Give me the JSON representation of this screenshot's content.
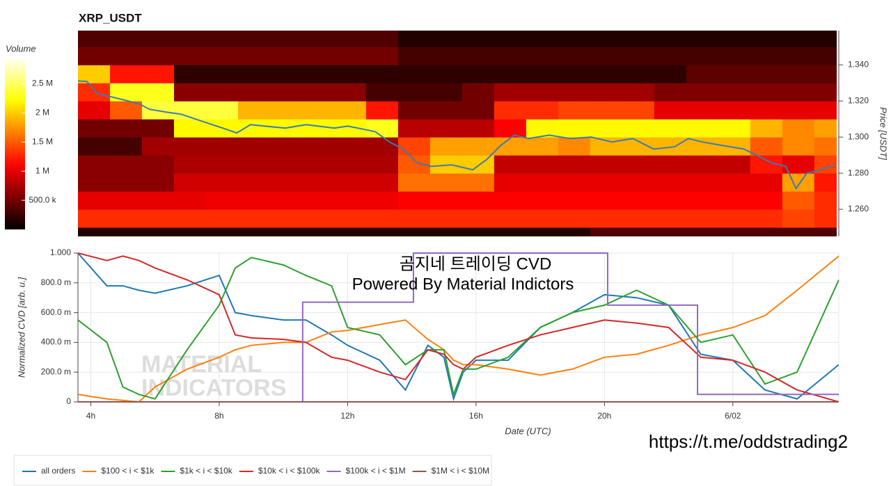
{
  "chart_data": [
    {
      "type": "heatmap",
      "title": "XRP_USDT",
      "colormap": "hot",
      "xlim": [
        3.6,
        27.3
      ],
      "ylim": [
        1.245,
        1.359
      ],
      "xbins": [
        3.6,
        4.6,
        5.6,
        6.6,
        7.6,
        8.6,
        9.6,
        10.6,
        11.6,
        12.6,
        13.6,
        14.6,
        15.6,
        16.6,
        17.6,
        18.6,
        19.6,
        20.6,
        21.6,
        22.6,
        23.6,
        24.6,
        25.6,
        26.6,
        27.3
      ],
      "ybins": [
        1.24,
        1.25,
        1.26,
        1.27,
        1.28,
        1.29,
        1.3,
        1.31,
        1.32,
        1.33,
        1.34,
        1.35,
        1.36
      ],
      "z": [
        [
          150000,
          150000,
          150000,
          150000,
          150000,
          150000,
          150000,
          150000,
          150000,
          150000,
          150000,
          150000,
          150000,
          150000,
          150000,
          150000,
          350000,
          350000,
          350000,
          350000,
          350000,
          350000,
          350000,
          350000
        ],
        [
          1300000,
          1300000,
          1300000,
          1300000,
          1300000,
          1300000,
          1300000,
          1300000,
          1300000,
          1300000,
          1300000,
          1300000,
          1300000,
          1300000,
          1300000,
          1300000,
          1300000,
          1300000,
          1300000,
          1300000,
          1300000,
          1300000,
          1400000,
          1300000
        ],
        [
          1000000,
          1000000,
          1000000,
          1000000,
          1050000,
          1050000,
          1050000,
          1050000,
          1050000,
          1050000,
          1100000,
          1100000,
          1100000,
          1100000,
          1100000,
          1100000,
          1100000,
          1100000,
          1100000,
          1100000,
          1100000,
          1100000,
          1500000,
          1300000
        ],
        [
          600000,
          600000,
          600000,
          900000,
          900000,
          900000,
          900000,
          900000,
          900000,
          900000,
          1600000,
          1600000,
          1600000,
          1000000,
          1000000,
          1000000,
          1000000,
          1000000,
          1000000,
          1000000,
          1000000,
          1000000,
          1800000,
          1200000
        ],
        [
          600000,
          600000,
          600000,
          750000,
          750000,
          750000,
          750000,
          750000,
          750000,
          750000,
          1500000,
          2000000,
          2000000,
          850000,
          850000,
          850000,
          850000,
          850000,
          850000,
          850000,
          850000,
          1200000,
          1000000,
          1400000
        ],
        [
          300000,
          300000,
          700000,
          700000,
          700000,
          700000,
          700000,
          700000,
          700000,
          700000,
          1400000,
          1800000,
          1800000,
          1800000,
          1800000,
          1700000,
          1900000,
          1900000,
          1900000,
          1900000,
          1900000,
          1500000,
          1700000,
          1600000
        ],
        [
          500000,
          500000,
          500000,
          2200000,
          2200000,
          2200000,
          2200000,
          2200000,
          2200000,
          2300000,
          800000,
          800000,
          800000,
          1100000,
          2200000,
          2200000,
          2200000,
          2200000,
          2200000,
          2200000,
          2200000,
          1900000,
          1700000,
          1800000
        ],
        [
          1000000,
          1500000,
          2400000,
          2400000,
          2400000,
          1900000,
          1900000,
          1900000,
          1900000,
          1200000,
          500000,
          500000,
          500000,
          1300000,
          1300000,
          1400000,
          1400000,
          1400000,
          1000000,
          1000000,
          1000000,
          1000000,
          1000000,
          1000000
        ],
        [
          1300000,
          2300000,
          2300000,
          600000,
          600000,
          600000,
          600000,
          600000,
          600000,
          300000,
          300000,
          300000,
          500000,
          700000,
          700000,
          700000,
          700000,
          700000,
          550000,
          550000,
          550000,
          550000,
          550000,
          550000
        ],
        [
          2000000,
          1200000,
          1200000,
          200000,
          200000,
          200000,
          200000,
          200000,
          200000,
          200000,
          200000,
          200000,
          200000,
          200000,
          200000,
          200000,
          200000,
          200000,
          200000,
          400000,
          400000,
          400000,
          400000,
          400000
        ],
        [
          500000,
          500000,
          500000,
          500000,
          500000,
          500000,
          500000,
          500000,
          500000,
          500000,
          300000,
          300000,
          300000,
          300000,
          300000,
          300000,
          300000,
          300000,
          300000,
          300000,
          300000,
          300000,
          300000,
          300000
        ],
        [
          350000,
          350000,
          350000,
          350000,
          350000,
          350000,
          350000,
          350000,
          350000,
          350000,
          150000,
          150000,
          150000,
          150000,
          150000,
          150000,
          150000,
          150000,
          150000,
          150000,
          150000,
          150000,
          150000,
          150000
        ]
      ],
      "yaxis_side": "right",
      "ylabel": "Price [USDT]",
      "yticks": [
        {
          "value": 1.26,
          "label": "1.260"
        },
        {
          "value": 1.28,
          "label": "1.280"
        },
        {
          "value": 1.3,
          "label": "1.300"
        },
        {
          "value": 1.32,
          "label": "1.320"
        },
        {
          "value": 1.34,
          "label": "1.340"
        }
      ],
      "colorbar": {
        "label": "Volume",
        "lim": [
          0,
          2960000
        ],
        "ticks": [
          {
            "value": 500000,
            "label": "500.0 k"
          },
          {
            "value": 1000000,
            "label": "1 M"
          },
          {
            "value": 1500000,
            "label": "1.5 M"
          },
          {
            "value": 2000000,
            "label": "2 M"
          },
          {
            "value": 2500000,
            "label": "2.5 M"
          }
        ]
      },
      "price_line": {
        "color": "#3a7bb5",
        "x": [
          3.6,
          3.88,
          4.21,
          4.64,
          5.08,
          5.51,
          5.84,
          6.38,
          6.82,
          7.47,
          8.12,
          8.56,
          8.99,
          9.43,
          10.08,
          10.73,
          11.6,
          12.03,
          12.89,
          13.33,
          13.76,
          14.2,
          14.63,
          15.28,
          15.93,
          16.37,
          16.8,
          17.23,
          17.67,
          18.32,
          18.97,
          19.63,
          20.28,
          20.93,
          21.58,
          22.23,
          22.67,
          23.1,
          23.75,
          24.4,
          24.84,
          25.27,
          25.71,
          26.03,
          26.36,
          26.79,
          27.23
        ],
        "values": [
          1.3311,
          1.3308,
          1.3242,
          1.3223,
          1.3204,
          1.3184,
          1.3154,
          1.3138,
          1.3127,
          1.3088,
          1.305,
          1.3023,
          1.3069,
          1.3061,
          1.305,
          1.3069,
          1.305,
          1.3061,
          1.303,
          1.2973,
          1.2934,
          1.2857,
          1.2838,
          1.2846,
          1.2819,
          1.2876,
          1.2953,
          1.3011,
          1.2992,
          1.3011,
          1.2992,
          1.3,
          1.2973,
          1.2992,
          1.2934,
          1.2946,
          1.2992,
          1.2973,
          1.2953,
          1.2934,
          1.2896,
          1.2857,
          1.2838,
          1.2715,
          1.2799,
          1.2819,
          1.2846
        ]
      }
    },
    {
      "type": "line",
      "grid": true,
      "xlim": [
        3.6,
        27.3
      ],
      "ylim": [
        0,
        1
      ],
      "xlabel": "Date (UTC)",
      "ylabel": "Normalized CVD [arb. u.]",
      "xticks": [
        {
          "value": 4,
          "label": "4h"
        },
        {
          "value": 8,
          "label": "8h"
        },
        {
          "value": 12,
          "label": "12h"
        },
        {
          "value": 16,
          "label": "16h"
        },
        {
          "value": 20,
          "label": "20h"
        },
        {
          "value": 24,
          "label": "6/02"
        }
      ],
      "yticks": [
        0,
        {
          "value": 0.2,
          "label": "200.0 m"
        },
        {
          "value": 0.4,
          "label": "400.0 m"
        },
        {
          "value": 0.6,
          "label": "600.0 m"
        },
        {
          "value": 0.8,
          "label": "800.0 m"
        },
        {
          "value": 1,
          "label": "1.000"
        }
      ],
      "x": [
        3.6,
        4.5,
        5,
        5.5,
        6,
        7,
        8,
        8.5,
        9,
        10,
        10.7,
        11.5,
        12,
        13,
        13.8,
        14.5,
        15,
        15.3,
        15.6,
        16,
        17,
        18,
        19,
        20,
        21,
        22,
        23,
        24,
        25,
        26,
        27.3
      ],
      "series": [
        {
          "name": "all orders",
          "color": "#1f77b4",
          "values": [
            1.0,
            0.78,
            0.78,
            0.75,
            0.73,
            0.78,
            0.85,
            0.6,
            0.58,
            0.55,
            0.55,
            0.45,
            0.38,
            0.28,
            0.08,
            0.38,
            0.3,
            0.02,
            0.2,
            0.28,
            0.28,
            0.5,
            0.6,
            0.72,
            0.7,
            0.65,
            0.32,
            0.28,
            0.08,
            0.02,
            0.25
          ]
        },
        {
          "name": "$100 < i < $1k",
          "color": "#ff7f0e",
          "values": [
            0.05,
            0.02,
            0.01,
            0,
            0.1,
            0.22,
            0.3,
            0.35,
            0.38,
            0.4,
            0.4,
            0.47,
            0.48,
            0.52,
            0.55,
            0.42,
            0.35,
            0.28,
            0.25,
            0.25,
            0.22,
            0.18,
            0.22,
            0.3,
            0.32,
            0.38,
            0.45,
            0.5,
            0.58,
            0.75,
            0.98
          ]
        },
        {
          "name": "$1k < i < $10k",
          "color": "#2ca02c",
          "values": [
            0.55,
            0.4,
            0.1,
            0.05,
            0.02,
            0.35,
            0.65,
            0.9,
            0.97,
            0.92,
            0.85,
            0.78,
            0.5,
            0.45,
            0.25,
            0.35,
            0.35,
            0.05,
            0.22,
            0.22,
            0.3,
            0.5,
            0.6,
            0.65,
            0.75,
            0.65,
            0.4,
            0.45,
            0.12,
            0.2,
            0.82
          ]
        },
        {
          "name": "$10k < i < $100k",
          "color": "#d62728",
          "values": [
            1.0,
            0.95,
            0.98,
            0.95,
            0.9,
            0.82,
            0.72,
            0.45,
            0.43,
            0.42,
            0.4,
            0.3,
            0.28,
            0.2,
            0.15,
            0.35,
            0.32,
            0.25,
            0.22,
            0.3,
            0.38,
            0.45,
            0.5,
            0.55,
            0.53,
            0.5,
            0.3,
            0.28,
            0.2,
            0.08,
            0
          ]
        },
        {
          "name": "$100k < i < $1M",
          "color": "#9467bd",
          "x": [
            3.6,
            10.6,
            10.6,
            14.05,
            14.05,
            20.1,
            20.1,
            22.9,
            22.9,
            27.3
          ],
          "values": [
            0,
            0,
            0.67,
            0.67,
            1,
            1,
            0.65,
            0.65,
            0.05,
            0.05
          ]
        },
        {
          "name": "$1M < i < $10M",
          "color": "#8c564b",
          "x": [
            3.6,
            27.3
          ],
          "values": [
            0,
            0
          ]
        }
      ],
      "watermark": [
        "MATERIAL",
        "INDICATORS"
      ],
      "annotations": [
        "곰지네 트레이딩 CVD",
        "Powered By Material Indictors",
        "https://t.me/oddstrading2"
      ]
    }
  ]
}
